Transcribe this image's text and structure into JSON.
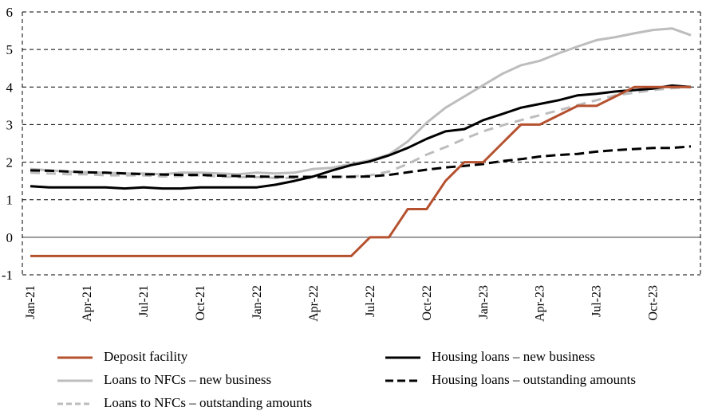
{
  "chart_data": {
    "type": "line",
    "title": "",
    "xlabel": "",
    "ylabel": "",
    "ylim": [
      -1,
      6
    ],
    "yticks": [
      "6",
      "5",
      "4",
      "3",
      "2",
      "1",
      "0",
      "-1"
    ],
    "ytick_values": [
      6,
      5,
      4,
      3,
      2,
      1,
      0,
      -1
    ],
    "grid": true,
    "legend_position": "bottom",
    "x": [
      "Jan-21",
      "Feb-21",
      "Mar-21",
      "Apr-21",
      "May-21",
      "Jun-21",
      "Jul-21",
      "Aug-21",
      "Sep-21",
      "Oct-21",
      "Nov-21",
      "Dec-21",
      "Jan-22",
      "Feb-22",
      "Mar-22",
      "Apr-22",
      "May-22",
      "Jun-22",
      "Jul-22",
      "Aug-22",
      "Sep-22",
      "Oct-22",
      "Nov-22",
      "Dec-22",
      "Jan-23",
      "Feb-23",
      "Mar-23",
      "Apr-23",
      "May-23",
      "Jun-23",
      "Jul-23",
      "Aug-23",
      "Sep-23",
      "Oct-23",
      "Nov-23",
      "Dec-23"
    ],
    "xtick_labels": [
      "Jan-21",
      "Apr-21",
      "Jul-21",
      "Oct-21",
      "Jan-22",
      "Apr-22",
      "Jul-22",
      "Oct-22",
      "Jan-23",
      "Apr-23",
      "Jul-23",
      "Oct-23"
    ],
    "series": [
      {
        "name": "Deposit facility",
        "color": "#b5512f",
        "style": "solid",
        "values": [
          -0.5,
          -0.5,
          -0.5,
          -0.5,
          -0.5,
          -0.5,
          -0.5,
          -0.5,
          -0.5,
          -0.5,
          -0.5,
          -0.5,
          -0.5,
          -0.5,
          -0.5,
          -0.5,
          -0.5,
          -0.5,
          0.0,
          0.0,
          0.75,
          0.75,
          1.5,
          2.0,
          2.0,
          2.5,
          3.0,
          3.0,
          3.25,
          3.5,
          3.5,
          3.75,
          4.0,
          4.0,
          4.0,
          4.0
        ]
      },
      {
        "name": "Loans to NFCs – new business",
        "color": "#bdbdbd",
        "style": "solid",
        "values": [
          1.82,
          1.78,
          1.75,
          1.73,
          1.72,
          1.7,
          1.7,
          1.68,
          1.72,
          1.72,
          1.7,
          1.68,
          1.72,
          1.7,
          1.72,
          1.82,
          1.85,
          1.95,
          2.05,
          2.2,
          2.55,
          3.05,
          3.45,
          3.75,
          4.05,
          4.35,
          4.58,
          4.7,
          4.9,
          5.08,
          5.25,
          5.33,
          5.43,
          5.52,
          5.56,
          5.38
        ]
      },
      {
        "name": "Loans to NFCs – outstanding amounts",
        "color": "#bdbdbd",
        "style": "dashed",
        "values": [
          1.72,
          1.7,
          1.68,
          1.68,
          1.65,
          1.65,
          1.65,
          1.62,
          1.63,
          1.65,
          1.62,
          1.6,
          1.6,
          1.58,
          1.58,
          1.58,
          1.6,
          1.62,
          1.65,
          1.75,
          1.95,
          2.2,
          2.4,
          2.62,
          2.82,
          2.98,
          3.12,
          3.25,
          3.38,
          3.52,
          3.65,
          3.78,
          3.85,
          3.92,
          3.97,
          4.0
        ]
      },
      {
        "name": "Housing loans – new business",
        "color": "#000000",
        "style": "solid",
        "values": [
          1.36,
          1.33,
          1.33,
          1.33,
          1.33,
          1.3,
          1.33,
          1.3,
          1.3,
          1.33,
          1.33,
          1.33,
          1.33,
          1.4,
          1.5,
          1.62,
          1.78,
          1.92,
          2.02,
          2.18,
          2.38,
          2.62,
          2.82,
          2.88,
          3.12,
          3.28,
          3.45,
          3.55,
          3.65,
          3.78,
          3.82,
          3.88,
          3.92,
          3.96,
          4.04,
          4.0
        ]
      },
      {
        "name": "Housing loans – outstanding amounts",
        "color": "#000000",
        "style": "dashed",
        "values": [
          1.78,
          1.77,
          1.75,
          1.73,
          1.72,
          1.7,
          1.68,
          1.67,
          1.66,
          1.66,
          1.64,
          1.63,
          1.62,
          1.61,
          1.61,
          1.61,
          1.61,
          1.61,
          1.62,
          1.66,
          1.73,
          1.8,
          1.86,
          1.9,
          1.95,
          2.03,
          2.08,
          2.15,
          2.19,
          2.22,
          2.28,
          2.32,
          2.35,
          2.38,
          2.38,
          2.42
        ]
      }
    ]
  },
  "legend": {
    "items": [
      {
        "label": "Deposit facility",
        "color": "#b5512f",
        "style": "solid"
      },
      {
        "label": "Housing loans – new business",
        "color": "#000000",
        "style": "solid"
      },
      {
        "label": "Loans to NFCs – new business",
        "color": "#bdbdbd",
        "style": "solid"
      },
      {
        "label": "Housing loans – outstanding amounts",
        "color": "#000000",
        "style": "dashed"
      },
      {
        "label": "Loans to NFCs – outstanding amounts",
        "color": "#bdbdbd",
        "style": "dashed"
      }
    ]
  }
}
